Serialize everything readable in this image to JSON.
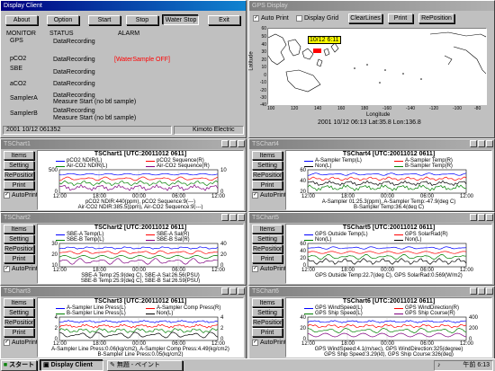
{
  "display_client": {
    "title": "Display Client",
    "buttons": [
      "About",
      "Option",
      "Start",
      "Stop",
      "Water Stop",
      "Exit"
    ],
    "headers": {
      "monitor": "MONITOR",
      "status": "STATUS",
      "alarm": "ALARM"
    },
    "rows": [
      {
        "monitor": "GPS",
        "status": "DataRecording",
        "alarm": ""
      },
      {
        "monitor": "pCO2",
        "status": "DataRecording",
        "alarm": "[WaterSample OFF]"
      },
      {
        "monitor": "SBE",
        "status": "DataRecording",
        "alarm": ""
      },
      {
        "monitor": "aCO2",
        "status": "DataRecording",
        "alarm": ""
      },
      {
        "monitor": "SamplerA",
        "status": "DataRecording",
        "status2": "Measure Start (no btl sample)",
        "alarm": ""
      },
      {
        "monitor": "SamplerB",
        "status": "DataRecording",
        "status2": "Measure Start (no btl sample)",
        "alarm": ""
      }
    ],
    "statusbar_left": "2001 10/12 061352",
    "statusbar_right": "Kimoto Electric",
    "alarm_color": "#ff0000"
  },
  "map": {
    "title": "GPS Display",
    "auto_print": "Auto Print",
    "display_grid": "Display Grid",
    "clearlines": "ClearLines",
    "print": "Print",
    "reposition": "RePosition",
    "ylabel": "Latitude",
    "xlabel": "Longitude",
    "yticks": [
      "60",
      "50",
      "40",
      "30",
      "20",
      "10",
      "0",
      "-10",
      "-20",
      "-30",
      "-40"
    ],
    "xticks": [
      "100",
      "120",
      "140",
      "160",
      "180",
      "-160",
      "-140",
      "-120",
      "-100",
      "-80"
    ],
    "marker_label": "10/12 6:11",
    "footer": "2001 10/12 06:13  Lat:35.8  Lon:136.8"
  },
  "side_buttons": [
    "Items",
    "Setting",
    "RePosition",
    "Print"
  ],
  "autoprint": "AutoPrint",
  "charts": [
    {
      "window": "TSChart1",
      "title": "TSChart1  [UTC:20011012 0611]",
      "legend": [
        {
          "name": "pCO2 NDIR(L)",
          "color": "#0000ff"
        },
        {
          "name": "pCO2 Sequence(R)",
          "color": "#ff0000"
        },
        {
          "name": "Air-CO2 NDIR(L)",
          "color": "#008000"
        },
        {
          "name": "Air-CO2 Sequence(R)",
          "color": "#800080"
        }
      ],
      "yl": [
        "500",
        "0"
      ],
      "yr": [
        "10",
        "0"
      ],
      "xticks": [
        "12:00",
        "18:00",
        "00:00",
        "06:00",
        "12:00"
      ],
      "info": [
        "pCO2 NDIR:440(ppm),  pCO2 Sequence:9(---)",
        "Air-CO2 NDIR:385.5(ppm), Air-CO2 Sequence:9(---)"
      ]
    },
    {
      "window": "TSChart2",
      "title": "TSChart2  [UTC:20011012 0611]",
      "legend": [
        {
          "name": "SBE-A Temp(L)",
          "color": "#0000ff"
        },
        {
          "name": "SBE-A Sal(R)",
          "color": "#ff0000"
        },
        {
          "name": "SBE-B Temp(L)",
          "color": "#008000"
        },
        {
          "name": "SBE-B Sal(R)",
          "color": "#800080"
        }
      ],
      "yl": [
        "30",
        "20",
        "10"
      ],
      "yr": [
        "40",
        "20",
        "0"
      ],
      "xticks": [
        "12:00",
        "18:00",
        "00:00",
        "06:00",
        "12:00"
      ],
      "info": [
        "SBE-A Temp:25.9(deg C),  SBE-A Sal:26.56(PSU)",
        "SBE-B Temp:25.9(deg C),  SBE-B Sal:26.59(PSU)"
      ]
    },
    {
      "window": "TSChart3",
      "title": "TSChart3  [UTC:20011012 0611]",
      "legend": [
        {
          "name": "A-Sampler Line Press(L)",
          "color": "#0000ff"
        },
        {
          "name": "A-Sampler Comp Press(R)",
          "color": "#ff0000"
        },
        {
          "name": "B-Sampler Line Press(L)",
          "color": "#008000"
        },
        {
          "name": "Non(L)",
          "color": "#000000"
        }
      ],
      "yl": [
        "4",
        "2",
        "0"
      ],
      "yr": [
        "4",
        "2",
        "0"
      ],
      "xticks": [
        "12:00",
        "18:00",
        "00:00",
        "06:00",
        "12:00"
      ],
      "info": [
        "A-Sampler Line Press:0.06(kg/cm2), A-Sampler Comp Press:4.49(kg/cm2)",
        "B-Sampler Line Press:0.05(kg/cm2)"
      ]
    },
    {
      "window": "TSChart4",
      "title": "TSChart4  [UTC:20011012 0611]",
      "legend": [
        {
          "name": "A-Sampler Temp(L)",
          "color": "#0000ff"
        },
        {
          "name": "A-Sampler Temp(R)",
          "color": "#ff0000"
        },
        {
          "name": "Non(L)",
          "color": "#000000"
        },
        {
          "name": "B-Sampler Temp(R)",
          "color": "#008000"
        }
      ],
      "yl": [
        "60",
        "40",
        "20"
      ],
      "yr": [
        "",
        "",
        ""
      ],
      "xticks": [
        "12:00",
        "18:00",
        "00:00",
        "06:00",
        "12:00"
      ],
      "info": [
        "A-Sampler 01:25.3(ppm), A-Sampler Temp:-47.9(deg C)",
        "B-Sampler Temp:36.4(deg C)"
      ]
    },
    {
      "window": "TSChart5",
      "title": "TSChart5  [UTC:20011012 0611]",
      "legend": [
        {
          "name": "GPS Outside Temp(L)",
          "color": "#0000ff"
        },
        {
          "name": "GPS SolarRad(R)",
          "color": "#ff0000"
        },
        {
          "name": "Non(L)",
          "color": "#008000"
        },
        {
          "name": "Non(L)",
          "color": "#000000"
        }
      ],
      "yl": [
        "60",
        "40",
        "20",
        "0"
      ],
      "yr": [
        "",
        "",
        ""
      ],
      "xticks": [
        "12:00",
        "18:00",
        "00:00",
        "06:00",
        "12:00"
      ],
      "info": [
        "GPS Outside Temp:22.7(deg C), GPS SolarRad:0.569(W/m2)"
      ]
    },
    {
      "window": "TSChart6",
      "title": "TSChart6  [UTC:20011012 0611]",
      "legend": [
        {
          "name": "GPS WindSpeed(L)",
          "color": "#0000ff"
        },
        {
          "name": "GPS WindDirection(R)",
          "color": "#ff0000"
        },
        {
          "name": "GPS Ship Speed(L)",
          "color": "#008000"
        },
        {
          "name": "GPS Ship Course(R)",
          "color": "#800080"
        }
      ],
      "yl": [
        "40",
        "20",
        "0"
      ],
      "yr": [
        "400",
        "200",
        "0"
      ],
      "xticks": [
        "12:00",
        "18:00",
        "00:00",
        "06:00",
        "12:00"
      ],
      "info": [
        "GPS WindSpeed:4.1(m/sec), GPS WindDirection:325(degree)",
        "GPS Ship Speed:3.29(kt), GPS Ship Course:326(deg)"
      ]
    }
  ],
  "taskbar": {
    "start": "スタート",
    "items": [
      "Display Client",
      "無題 - ペイント"
    ],
    "clock": "午前 6:13"
  }
}
